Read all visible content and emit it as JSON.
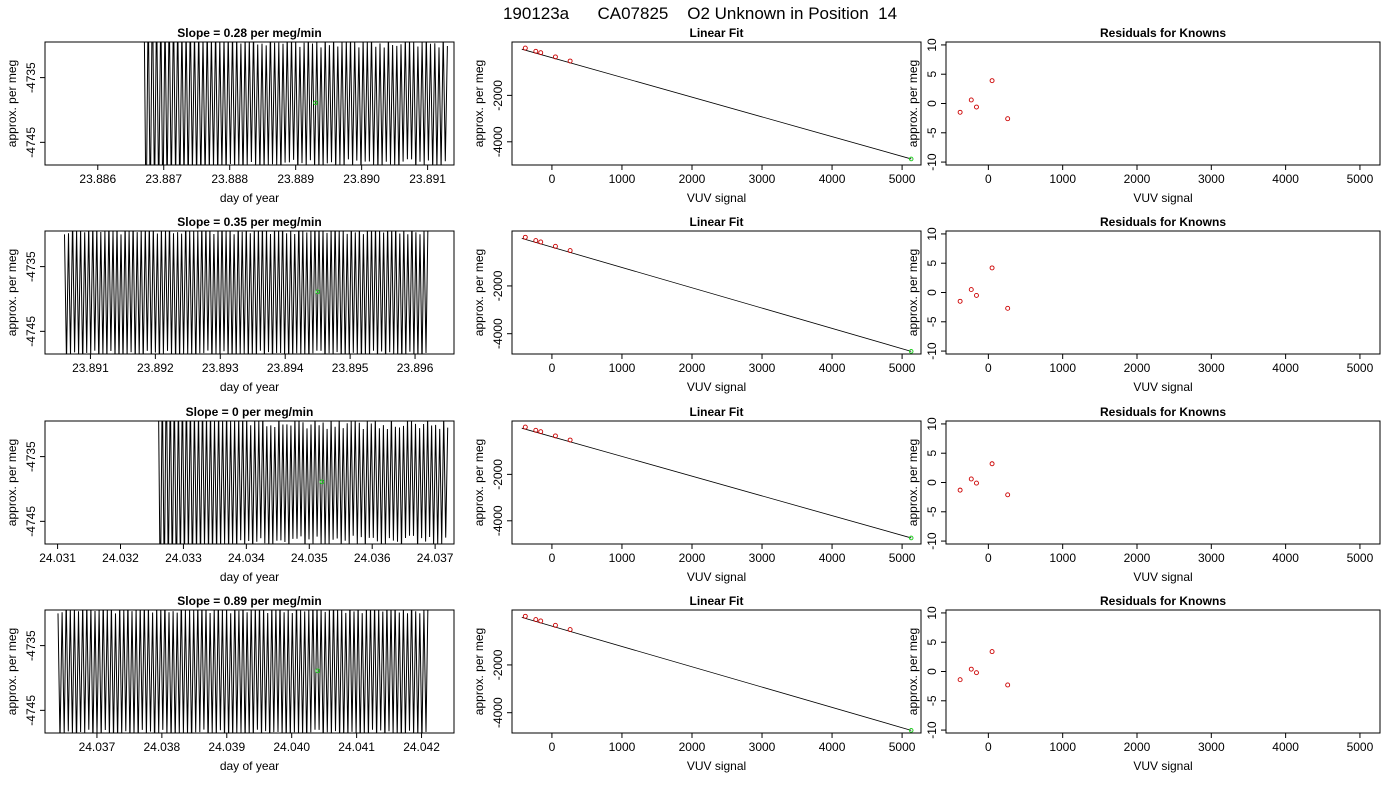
{
  "figure": {
    "title": "190123a      CA07825    O2 Unknown in Position  14"
  },
  "colors": {
    "trace": "#000000",
    "known_points": "#cc0000",
    "unknown_point": "#22cc22",
    "fit_line": "#000000"
  },
  "chart_data": [
    {
      "type": "line",
      "panel": "slope-trace",
      "row": 0,
      "title": "Slope =  0.28  per meg/min",
      "xlabel": "day of year",
      "ylabel": "approx. per meg",
      "xlim": [
        23.8852,
        23.8914
      ],
      "ylim": [
        -4748.5,
        -4729.5
      ],
      "xticks": [
        23.886,
        23.887,
        23.888,
        23.889,
        23.89,
        23.891
      ],
      "xtick_labels": [
        "23.886",
        "23.887",
        "23.888",
        "23.889",
        "23.890",
        "23.891"
      ],
      "yticks": [
        -4735,
        -4745
      ],
      "ytick_labels": [
        "-4735",
        "-4745"
      ],
      "trace": {
        "x_start": 23.8867,
        "x_end": 23.8913,
        "cycles": 72,
        "amplitude": 11,
        "center": -4739,
        "settle": 0.12
      },
      "unknown_point": {
        "x": 23.8893,
        "y": -4738.9
      }
    },
    {
      "type": "scatter",
      "panel": "linear-fit",
      "row": 0,
      "title": "Linear Fit",
      "xlabel": "VUV signal",
      "ylabel": "approx. per meg",
      "xlim": [
        -570,
        5270
      ],
      "ylim": [
        -5000,
        300
      ],
      "xticks": [
        0,
        1000,
        2000,
        3000,
        4000,
        5000
      ],
      "xtick_labels": [
        "0",
        "1000",
        "2000",
        "3000",
        "4000",
        "5000"
      ],
      "yticks": [
        -2000,
        -4000
      ],
      "ytick_labels": [
        "-2000",
        "-4000"
      ],
      "fit_line": {
        "x": [
          -430,
          5130
        ],
        "y": [
          -10,
          -4739
        ]
      },
      "knowns": {
        "x": [
          -380,
          -230,
          -160,
          50,
          260
        ],
        "y": [
          37,
          -101,
          -160,
          -342,
          -520
        ]
      },
      "unknown_point": {
        "x": 5130,
        "y": -4739
      }
    },
    {
      "type": "scatter",
      "panel": "residuals",
      "row": 0,
      "title": "Residuals for Knowns",
      "xlabel": "VUV signal",
      "ylabel": "approx. per meg",
      "xlim": [
        -570,
        5270
      ],
      "ylim": [
        -10.5,
        10.5
      ],
      "xticks": [
        0,
        1000,
        2000,
        3000,
        4000,
        5000
      ],
      "xtick_labels": [
        "0",
        "1000",
        "2000",
        "3000",
        "4000",
        "5000"
      ],
      "yticks": [
        10,
        5,
        0,
        -5,
        -10
      ],
      "ytick_labels": [
        "10",
        "5",
        "0",
        "-5",
        "-10"
      ],
      "knowns": {
        "x": [
          -380,
          -230,
          -160,
          50,
          260
        ],
        "y": [
          -1.5,
          0.6,
          -0.6,
          3.9,
          -2.6
        ]
      }
    },
    {
      "type": "line",
      "panel": "slope-trace",
      "row": 1,
      "title": "Slope =  0.35  per meg/min",
      "xlabel": "day of year",
      "ylabel": "approx. per meg",
      "xlim": [
        23.8903,
        23.8966
      ],
      "ylim": [
        -4748.5,
        -4729.5
      ],
      "xticks": [
        23.891,
        23.892,
        23.893,
        23.894,
        23.895,
        23.896
      ],
      "xtick_labels": [
        "23.891",
        "23.892",
        "23.893",
        "23.894",
        "23.895",
        "23.896"
      ],
      "yticks": [
        -4735,
        -4745
      ],
      "ytick_labels": [
        "-4735",
        "-4745"
      ],
      "trace": {
        "x_start": 23.8906,
        "x_end": 23.8962,
        "cycles": 90,
        "amplitude": 11.5,
        "center": -4739,
        "settle": 0
      },
      "unknown_point": {
        "x": 23.8945,
        "y": -4738.9
      }
    },
    {
      "type": "scatter",
      "panel": "linear-fit",
      "row": 1,
      "title": "Linear Fit",
      "xlabel": "VUV signal",
      "ylabel": "approx. per meg",
      "xlim": [
        -570,
        5270
      ],
      "ylim": [
        -4850,
        300
      ],
      "xticks": [
        0,
        1000,
        2000,
        3000,
        4000,
        5000
      ],
      "xtick_labels": [
        "0",
        "1000",
        "2000",
        "3000",
        "4000",
        "5000"
      ],
      "yticks": [
        -2000,
        -4000
      ],
      "ytick_labels": [
        "-2000",
        "-4000"
      ],
      "fit_line": {
        "x": [
          -430,
          5130
        ],
        "y": [
          -10,
          -4739
        ]
      },
      "knowns": {
        "x": [
          -380,
          -230,
          -160,
          50,
          260
        ],
        "y": [
          37,
          -101,
          -160,
          -342,
          -520
        ]
      },
      "unknown_point": {
        "x": 5130,
        "y": -4739
      }
    },
    {
      "type": "scatter",
      "panel": "residuals",
      "row": 1,
      "title": "Residuals for Knowns",
      "xlabel": "VUV signal",
      "ylabel": "approx. per meg",
      "xlim": [
        -570,
        5270
      ],
      "ylim": [
        -10.5,
        10.5
      ],
      "xticks": [
        0,
        1000,
        2000,
        3000,
        4000,
        5000
      ],
      "xtick_labels": [
        "0",
        "1000",
        "2000",
        "3000",
        "4000",
        "5000"
      ],
      "yticks": [
        10,
        5,
        0,
        -5,
        -10
      ],
      "ytick_labels": [
        "10",
        "5",
        "0",
        "-5",
        "-10"
      ],
      "knowns": {
        "x": [
          -380,
          -230,
          -160,
          50,
          260
        ],
        "y": [
          -1.5,
          0.5,
          -0.5,
          4.2,
          -2.7
        ]
      }
    },
    {
      "type": "line",
      "panel": "slope-trace",
      "row": 2,
      "title": "Slope =  0  per meg/min",
      "xlabel": "day of year",
      "ylabel": "approx. per meg",
      "xlim": [
        24.0308,
        24.0373
      ],
      "ylim": [
        -4748.5,
        -4729.5
      ],
      "xticks": [
        24.031,
        24.032,
        24.033,
        24.034,
        24.035,
        24.036,
        24.037
      ],
      "xtick_labels": [
        "24.031",
        "24.032",
        "24.033",
        "24.034",
        "24.035",
        "24.036",
        "24.037"
      ],
      "yticks": [
        -4735,
        -4745
      ],
      "ytick_labels": [
        "-4735",
        "-4745"
      ],
      "trace": {
        "x_start": 24.0326,
        "x_end": 24.0372,
        "cycles": 72,
        "amplitude": 10.5,
        "center": -4739,
        "settle": 0.12
      },
      "unknown_point": {
        "x": 24.0352,
        "y": -4738.9
      }
    },
    {
      "type": "scatter",
      "panel": "linear-fit",
      "row": 2,
      "title": "Linear Fit",
      "xlabel": "VUV signal",
      "ylabel": "approx. per meg",
      "xlim": [
        -570,
        5270
      ],
      "ylim": [
        -5000,
        300
      ],
      "xticks": [
        0,
        1000,
        2000,
        3000,
        4000,
        5000
      ],
      "xtick_labels": [
        "0",
        "1000",
        "2000",
        "3000",
        "4000",
        "5000"
      ],
      "yticks": [
        -2000,
        -4000
      ],
      "ytick_labels": [
        "-2000",
        "-4000"
      ],
      "fit_line": {
        "x": [
          -430,
          5130
        ],
        "y": [
          -10,
          -4739
        ]
      },
      "knowns": {
        "x": [
          -380,
          -230,
          -160,
          50,
          260
        ],
        "y": [
          37,
          -101,
          -160,
          -342,
          -520
        ]
      },
      "unknown_point": {
        "x": 5130,
        "y": -4739
      }
    },
    {
      "type": "scatter",
      "panel": "residuals",
      "row": 2,
      "title": "Residuals for Knowns",
      "xlabel": "VUV signal",
      "ylabel": "approx. per meg",
      "xlim": [
        -570,
        5270
      ],
      "ylim": [
        -10.5,
        10.5
      ],
      "xticks": [
        0,
        1000,
        2000,
        3000,
        4000,
        5000
      ],
      "xtick_labels": [
        "0",
        "1000",
        "2000",
        "3000",
        "4000",
        "5000"
      ],
      "yticks": [
        10,
        5,
        0,
        -5,
        -10
      ],
      "ytick_labels": [
        "10",
        "5",
        "0",
        "-5",
        "-10"
      ],
      "knowns": {
        "x": [
          -380,
          -230,
          -160,
          50,
          260
        ],
        "y": [
          -1.3,
          0.6,
          -0.1,
          3.2,
          -2.1
        ]
      }
    },
    {
      "type": "line",
      "panel": "slope-trace",
      "row": 3,
      "title": "Slope =  0.89  per meg/min",
      "xlabel": "day of year",
      "ylabel": "approx. per meg",
      "xlim": [
        24.0362,
        24.0425
      ],
      "ylim": [
        -4748.5,
        -4729.5
      ],
      "xticks": [
        24.037,
        24.038,
        24.039,
        24.04,
        24.041,
        24.042
      ],
      "xtick_labels": [
        "24.037",
        "24.038",
        "24.039",
        "24.040",
        "24.041",
        "24.042"
      ],
      "yticks": [
        -4735,
        -4745
      ],
      "ytick_labels": [
        "-4735",
        "-4745"
      ],
      "trace": {
        "x_start": 24.0364,
        "x_end": 24.0421,
        "cycles": 90,
        "amplitude": 11.5,
        "center": -4739,
        "settle": 0
      },
      "unknown_point": {
        "x": 24.0404,
        "y": -4738.9
      }
    },
    {
      "type": "scatter",
      "panel": "linear-fit",
      "row": 3,
      "title": "Linear Fit",
      "xlabel": "VUV signal",
      "ylabel": "approx. per meg",
      "xlim": [
        -570,
        5270
      ],
      "ylim": [
        -4850,
        300
      ],
      "xticks": [
        0,
        1000,
        2000,
        3000,
        4000,
        5000
      ],
      "xtick_labels": [
        "0",
        "1000",
        "2000",
        "3000",
        "4000",
        "5000"
      ],
      "yticks": [
        -2000,
        -4000
      ],
      "ytick_labels": [
        "-2000",
        "-4000"
      ],
      "fit_line": {
        "x": [
          -430,
          5130
        ],
        "y": [
          -10,
          -4739
        ]
      },
      "knowns": {
        "x": [
          -380,
          -230,
          -160,
          50,
          260
        ],
        "y": [
          37,
          -101,
          -160,
          -342,
          -520
        ]
      },
      "unknown_point": {
        "x": 5130,
        "y": -4739
      }
    },
    {
      "type": "scatter",
      "panel": "residuals",
      "row": 3,
      "title": "Residuals for Knowns",
      "xlabel": "VUV signal",
      "ylabel": "approx. per meg",
      "xlim": [
        -570,
        5270
      ],
      "ylim": [
        -10.5,
        10.5
      ],
      "xticks": [
        0,
        1000,
        2000,
        3000,
        4000,
        5000
      ],
      "xtick_labels": [
        "0",
        "1000",
        "2000",
        "3000",
        "4000",
        "5000"
      ],
      "yticks": [
        10,
        5,
        0,
        -5,
        -10
      ],
      "ytick_labels": [
        "10",
        "5",
        "0",
        "-5",
        "-10"
      ],
      "knowns": {
        "x": [
          -380,
          -230,
          -160,
          50,
          260
        ],
        "y": [
          -1.4,
          0.4,
          -0.2,
          3.4,
          -2.3
        ]
      }
    }
  ]
}
